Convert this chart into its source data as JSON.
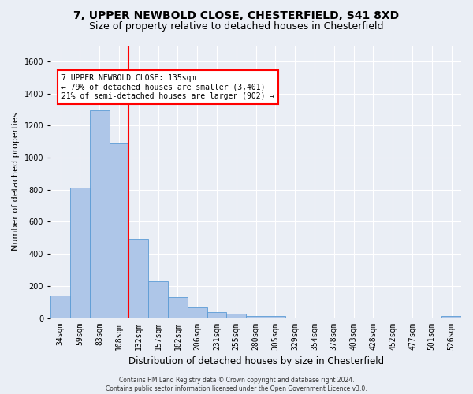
{
  "title_line1": "7, UPPER NEWBOLD CLOSE, CHESTERFIELD, S41 8XD",
  "title_line2": "Size of property relative to detached houses in Chesterfield",
  "xlabel": "Distribution of detached houses by size in Chesterfield",
  "ylabel": "Number of detached properties",
  "bar_labels": [
    "34sqm",
    "59sqm",
    "83sqm",
    "108sqm",
    "132sqm",
    "157sqm",
    "182sqm",
    "206sqm",
    "231sqm",
    "255sqm",
    "280sqm",
    "305sqm",
    "329sqm",
    "354sqm",
    "378sqm",
    "403sqm",
    "428sqm",
    "452sqm",
    "477sqm",
    "501sqm",
    "526sqm"
  ],
  "bar_values": [
    140,
    815,
    1295,
    1090,
    495,
    230,
    130,
    68,
    38,
    27,
    13,
    13,
    4,
    4,
    2,
    2,
    1,
    1,
    1,
    1,
    12
  ],
  "bar_color": "#aec6e8",
  "bar_edge_color": "#5b9bd5",
  "ylim": [
    0,
    1700
  ],
  "yticks": [
    0,
    200,
    400,
    600,
    800,
    1000,
    1200,
    1400,
    1600
  ],
  "red_line_x": 3.5,
  "annotation_text": "7 UPPER NEWBOLD CLOSE: 135sqm\n← 79% of detached houses are smaller (3,401)\n21% of semi-detached houses are larger (902) →",
  "footnote": "Contains HM Land Registry data © Crown copyright and database right 2024.\nContains public sector information licensed under the Open Government Licence v3.0.",
  "bg_color": "#eaeef5",
  "plot_bg_color": "#eaeef5",
  "grid_color": "#ffffff",
  "title_fontsize": 10,
  "subtitle_fontsize": 9,
  "tick_fontsize": 7,
  "ylabel_fontsize": 8,
  "xlabel_fontsize": 8.5
}
